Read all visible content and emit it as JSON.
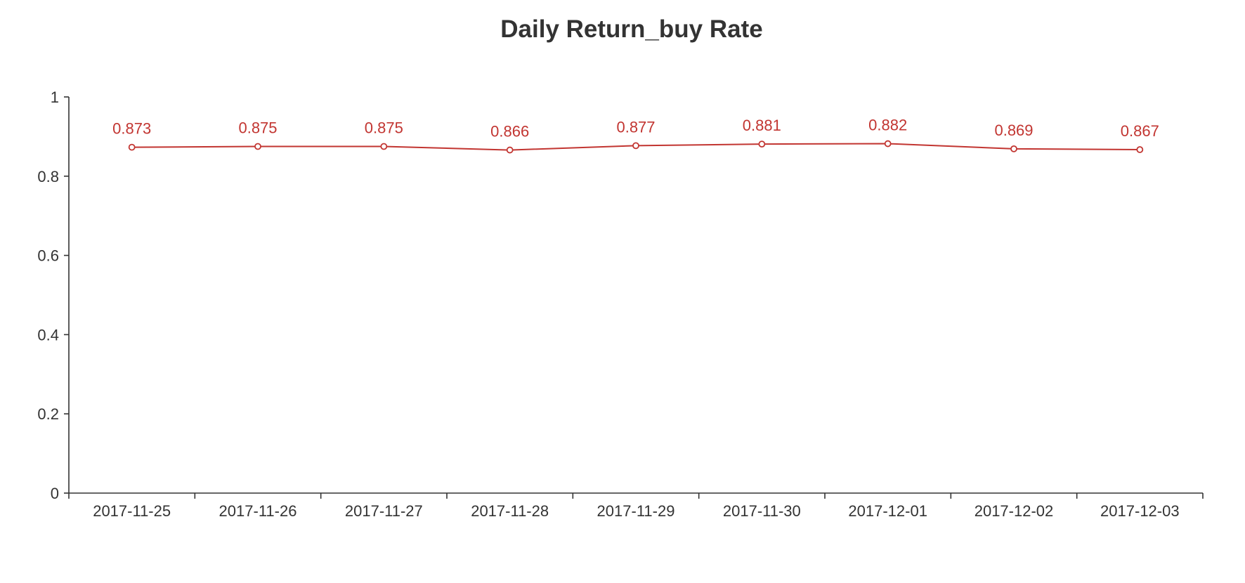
{
  "chart_data": {
    "type": "line",
    "title": "Daily Return_buy Rate",
    "xlabel": "",
    "ylabel": "",
    "categories": [
      "2017-11-25",
      "2017-11-26",
      "2017-11-27",
      "2017-11-28",
      "2017-11-29",
      "2017-11-30",
      "2017-12-01",
      "2017-12-02",
      "2017-12-03"
    ],
    "values": [
      0.873,
      0.875,
      0.875,
      0.866,
      0.877,
      0.881,
      0.882,
      0.869,
      0.867
    ],
    "data_labels": [
      "0.873",
      "0.875",
      "0.875",
      "0.866",
      "0.877",
      "0.881",
      "0.882",
      "0.869",
      "0.867"
    ],
    "y_ticks": [
      "0",
      "0.2",
      "0.4",
      "0.6",
      "0.8",
      "1"
    ],
    "ylim": [
      0,
      1
    ],
    "grid": false,
    "legend": "none",
    "line_color": "#c23531",
    "axis_color": "#333333"
  }
}
